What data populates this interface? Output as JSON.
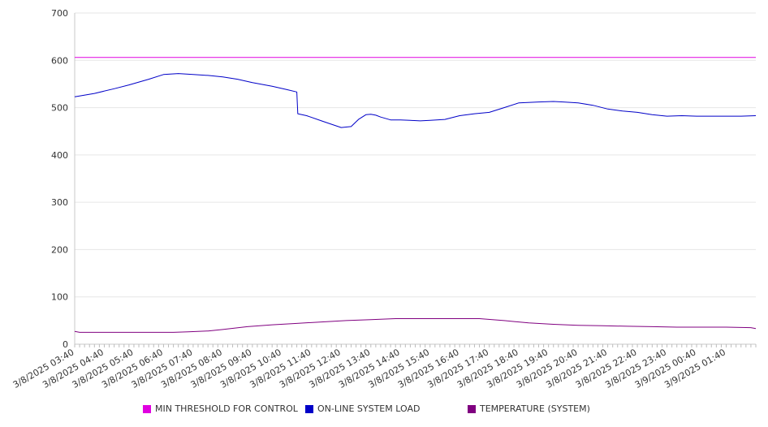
{
  "chart_data": {
    "type": "line",
    "ylim": [
      0,
      700
    ],
    "yticks": [
      "0",
      "100",
      "200",
      "300",
      "400",
      "500",
      "600",
      "700"
    ],
    "xlim": [
      0,
      1380
    ],
    "x_unit": "minutes from first tick",
    "tick_labels": [
      "3/8/2025 03:40",
      "3/8/2025 04:40",
      "3/8/2025 05:40",
      "3/8/2025 06:40",
      "3/8/2025 07:40",
      "3/8/2025 08:40",
      "3/8/2025 09:40",
      "3/8/2025 10:40",
      "3/8/2025 11:40",
      "3/8/2025 12:40",
      "3/8/2025 13:40",
      "3/8/2025 14:40",
      "3/8/2025 15:40",
      "3/8/2025 16:40",
      "3/8/2025 17:40",
      "3/8/2025 18:40",
      "3/8/2025 19:40",
      "3/8/2025 20:40",
      "3/8/2025 21:40",
      "3/8/2025 22:40",
      "3/8/2025 23:40",
      "3/9/2025 00:40",
      "3/9/2025 01:40"
    ],
    "grid": true,
    "legend_position": "bottom",
    "series": [
      {
        "name": "MIN THRESHOLD FOR CONTROL",
        "color": "#e000e0",
        "x": [
          0,
          1380
        ],
        "values": [
          606,
          606
        ]
      },
      {
        "name": "ON-LINE SYSTEM LOAD",
        "color": "#0000c8",
        "x": [
          0,
          40,
          80,
          110,
          150,
          180,
          210,
          240,
          270,
          300,
          330,
          360,
          400,
          430,
          450,
          452,
          470,
          500,
          520,
          540,
          560,
          575,
          590,
          600,
          610,
          620,
          640,
          660,
          680,
          700,
          720,
          750,
          780,
          810,
          840,
          870,
          900,
          940,
          970,
          990,
          1020,
          1050,
          1080,
          1110,
          1140,
          1170,
          1200,
          1230,
          1260,
          1290,
          1320,
          1350,
          1380
        ],
        "values": [
          523,
          530,
          540,
          548,
          560,
          570,
          572,
          570,
          568,
          565,
          560,
          553,
          545,
          538,
          533,
          487,
          483,
          472,
          465,
          458,
          460,
          475,
          485,
          486,
          484,
          480,
          474,
          474,
          473,
          472,
          473,
          475,
          483,
          487,
          490,
          500,
          510,
          512,
          513,
          512,
          510,
          505,
          497,
          493,
          490,
          485,
          482,
          483,
          482,
          482,
          482,
          482,
          483
        ]
      },
      {
        "name": "TEMPERATURE (SYSTEM)",
        "color": "#800080",
        "x": [
          0,
          10,
          30,
          100,
          200,
          230,
          270,
          300,
          350,
          400,
          450,
          500,
          550,
          600,
          650,
          700,
          750,
          820,
          870,
          920,
          970,
          1020,
          1070,
          1120,
          1170,
          1220,
          1270,
          1320,
          1370,
          1380
        ],
        "values": [
          27,
          25,
          25,
          25,
          25,
          26,
          28,
          31,
          37,
          41,
          44,
          47,
          50,
          52,
          54,
          54,
          54,
          54,
          50,
          45,
          42,
          40,
          39,
          38,
          37,
          36,
          36,
          36,
          35,
          33
        ]
      }
    ]
  }
}
